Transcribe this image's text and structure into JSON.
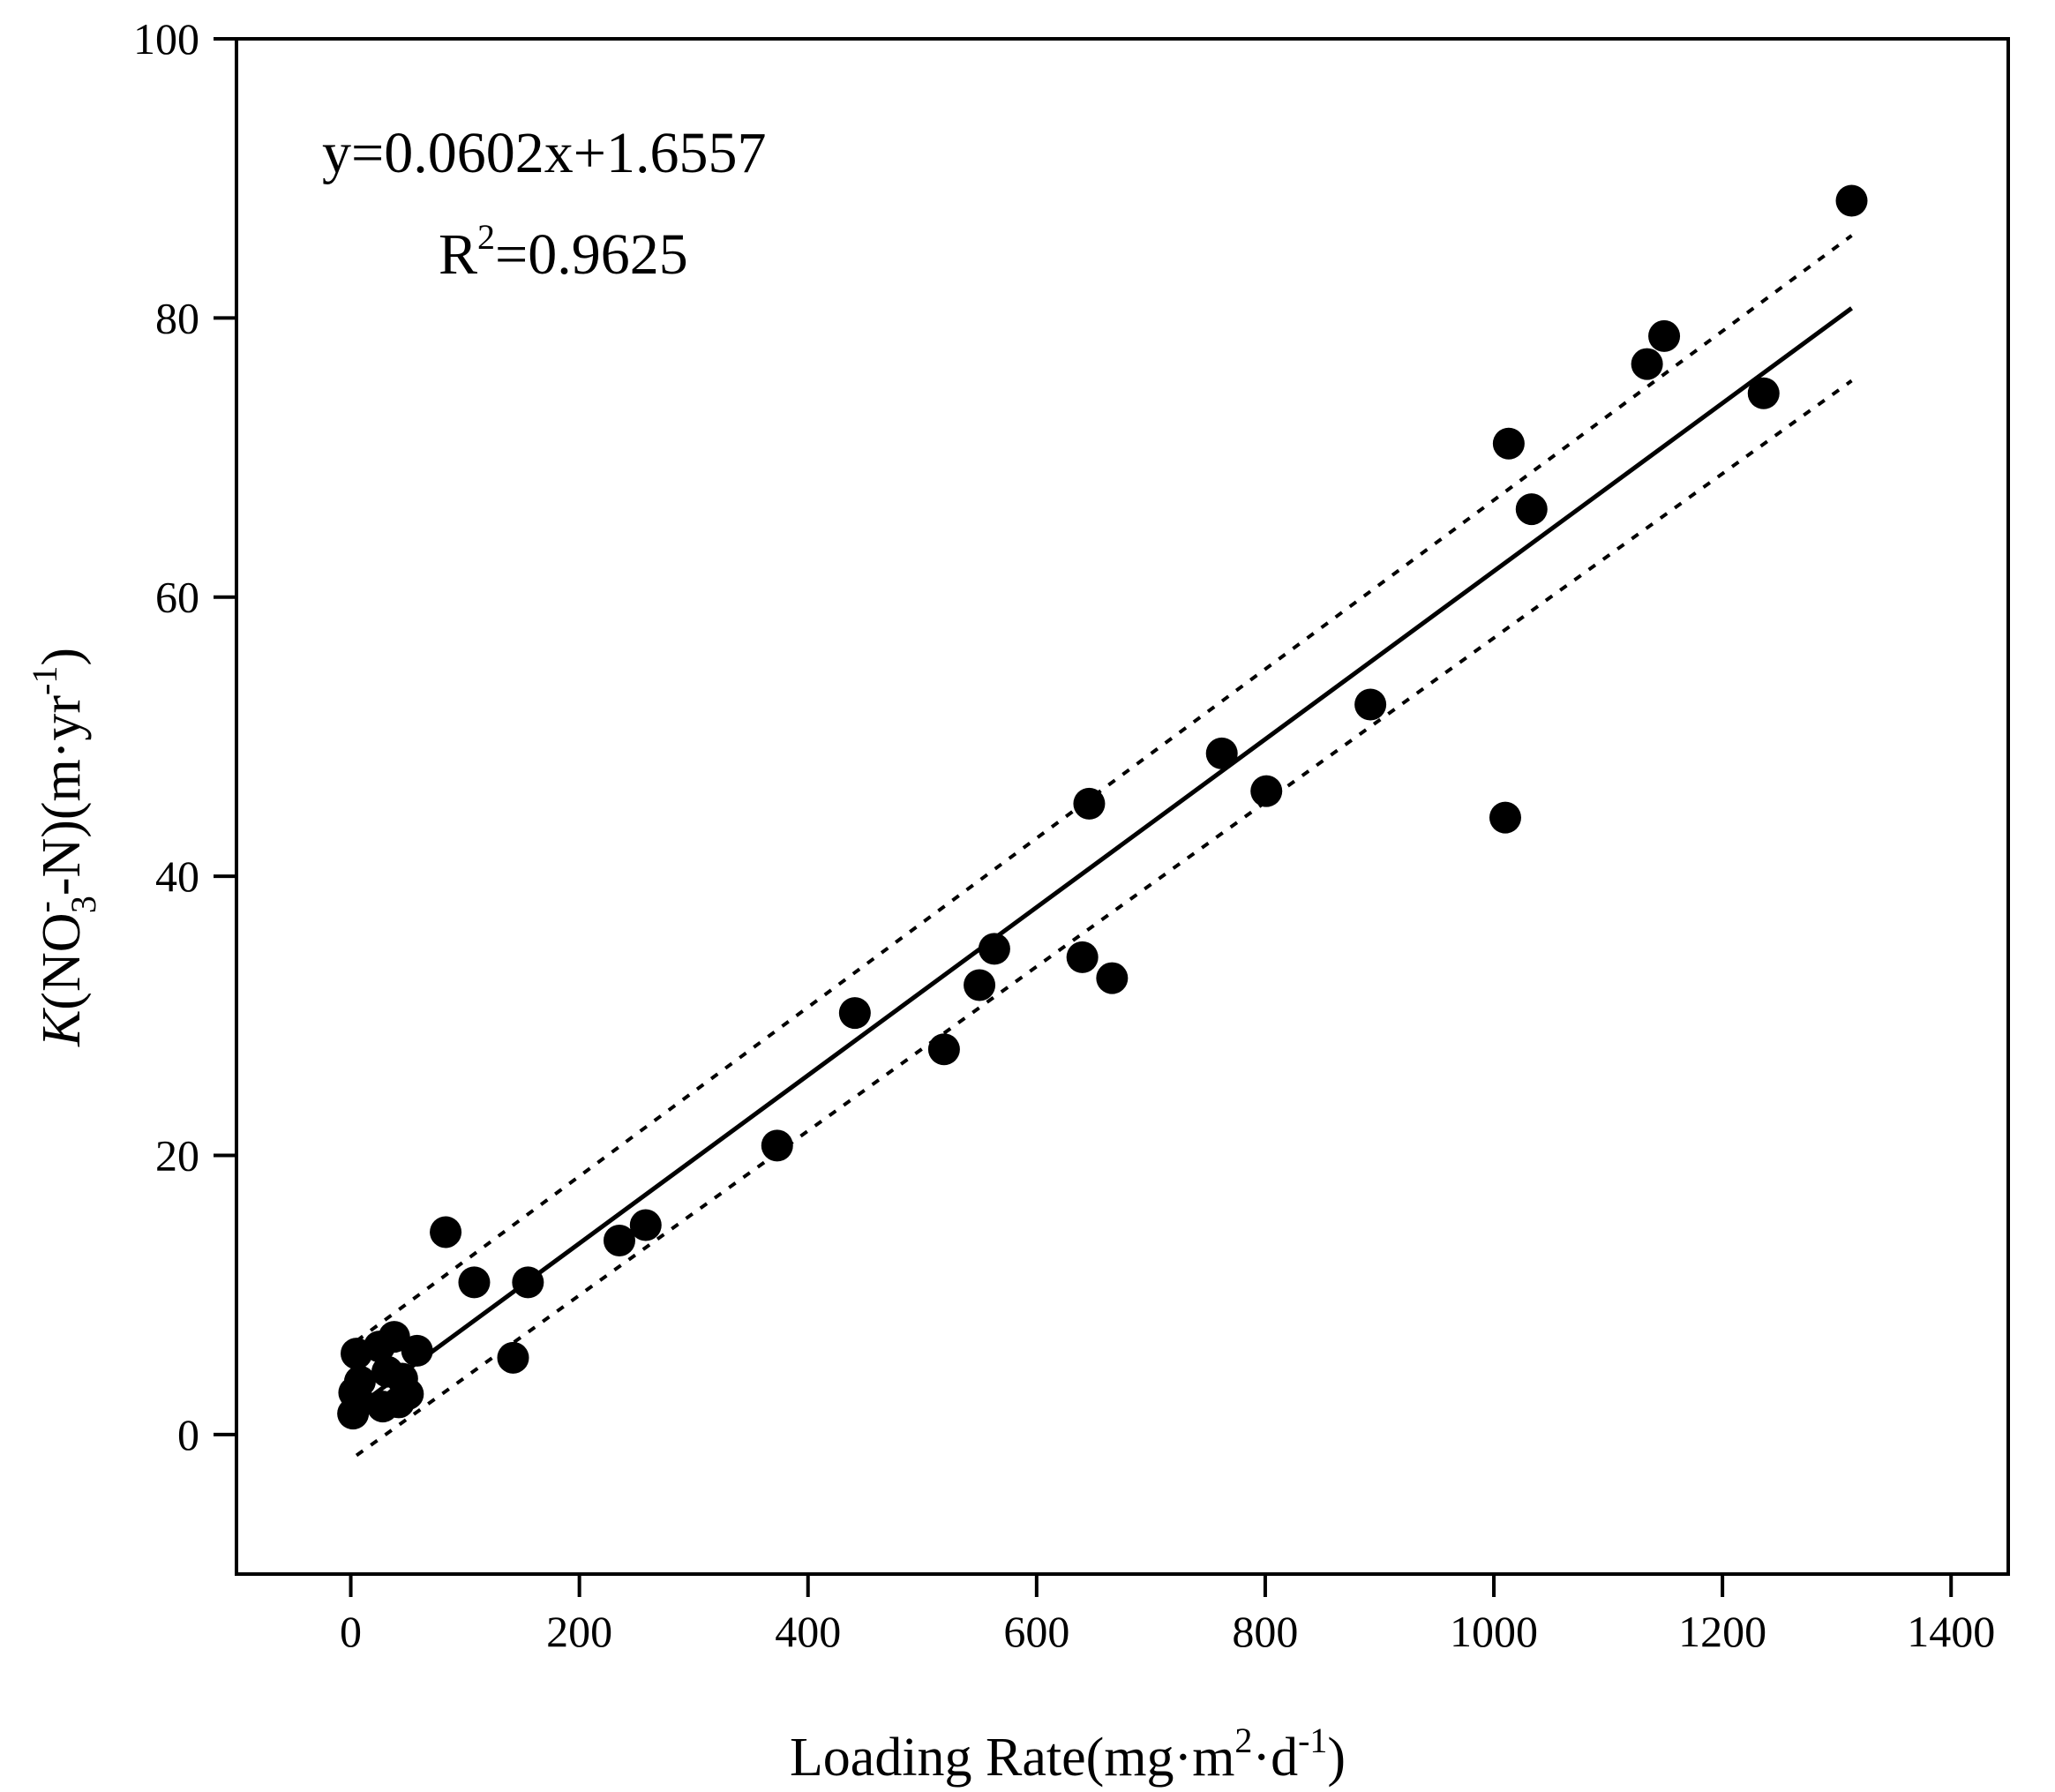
{
  "chart_data": {
    "type": "scatter",
    "title": "",
    "xlabel": {
      "main": "Loading Rate(mg·m",
      "sup1": "2",
      "mid": "·d",
      "sup2": "-1",
      "end": ")"
    },
    "ylabel": {
      "italic": "K",
      "part1": "(NO",
      "sup": "-",
      "sub": "3",
      "part2": "-N)(m·yr",
      "sup2": "-1",
      "end": ")"
    },
    "xlim": [
      -100,
      1450
    ],
    "ylim": [
      -10,
      100
    ],
    "x_ticks": [
      0,
      200,
      400,
      600,
      800,
      1000,
      1200,
      1400
    ],
    "y_ticks": [
      0,
      20,
      40,
      60,
      80,
      100
    ],
    "annotation": {
      "equation": "y=0.0602x+1.6557",
      "r2_prefix": "R",
      "r2_sup": "2",
      "r2_value": "=0.9625"
    },
    "regression": {
      "slope": 0.0602,
      "intercept": 1.6557,
      "x_range": [
        5,
        1313
      ]
    },
    "confidence_band": {
      "upper": [
        [
          5,
          6.7
        ],
        [
          1313,
          85.9
        ]
      ],
      "lower": [
        [
          5,
          -1.5
        ],
        [
          1313,
          75.5
        ]
      ]
    },
    "grid": false,
    "legend": "none",
    "points": [
      {
        "x": 2,
        "y": 1.5
      },
      {
        "x": 3,
        "y": 3.0
      },
      {
        "x": 5,
        "y": 5.8
      },
      {
        "x": 6,
        "y": 2.5
      },
      {
        "x": 8,
        "y": 3.8
      },
      {
        "x": 25,
        "y": 6.3
      },
      {
        "x": 28,
        "y": 2.0
      },
      {
        "x": 32,
        "y": 4.5
      },
      {
        "x": 38,
        "y": 7.0
      },
      {
        "x": 42,
        "y": 2.3
      },
      {
        "x": 45,
        "y": 4.0
      },
      {
        "x": 50,
        "y": 2.9
      },
      {
        "x": 58,
        "y": 6.0
      },
      {
        "x": 83,
        "y": 14.5
      },
      {
        "x": 108,
        "y": 10.9
      },
      {
        "x": 142,
        "y": 5.5
      },
      {
        "x": 155,
        "y": 10.9
      },
      {
        "x": 235,
        "y": 13.9
      },
      {
        "x": 258,
        "y": 15.0
      },
      {
        "x": 373,
        "y": 20.7
      },
      {
        "x": 441,
        "y": 30.2
      },
      {
        "x": 519,
        "y": 27.6
      },
      {
        "x": 550,
        "y": 32.2
      },
      {
        "x": 563,
        "y": 34.8
      },
      {
        "x": 640,
        "y": 34.2
      },
      {
        "x": 646,
        "y": 45.2
      },
      {
        "x": 666,
        "y": 32.7
      },
      {
        "x": 762,
        "y": 48.8
      },
      {
        "x": 801,
        "y": 46.1
      },
      {
        "x": 892,
        "y": 52.3
      },
      {
        "x": 1010,
        "y": 44.2
      },
      {
        "x": 1013,
        "y": 71.0
      },
      {
        "x": 1033,
        "y": 66.3
      },
      {
        "x": 1134,
        "y": 76.7
      },
      {
        "x": 1149,
        "y": 78.7
      },
      {
        "x": 1236,
        "y": 74.6
      },
      {
        "x": 1313,
        "y": 88.4
      }
    ]
  }
}
